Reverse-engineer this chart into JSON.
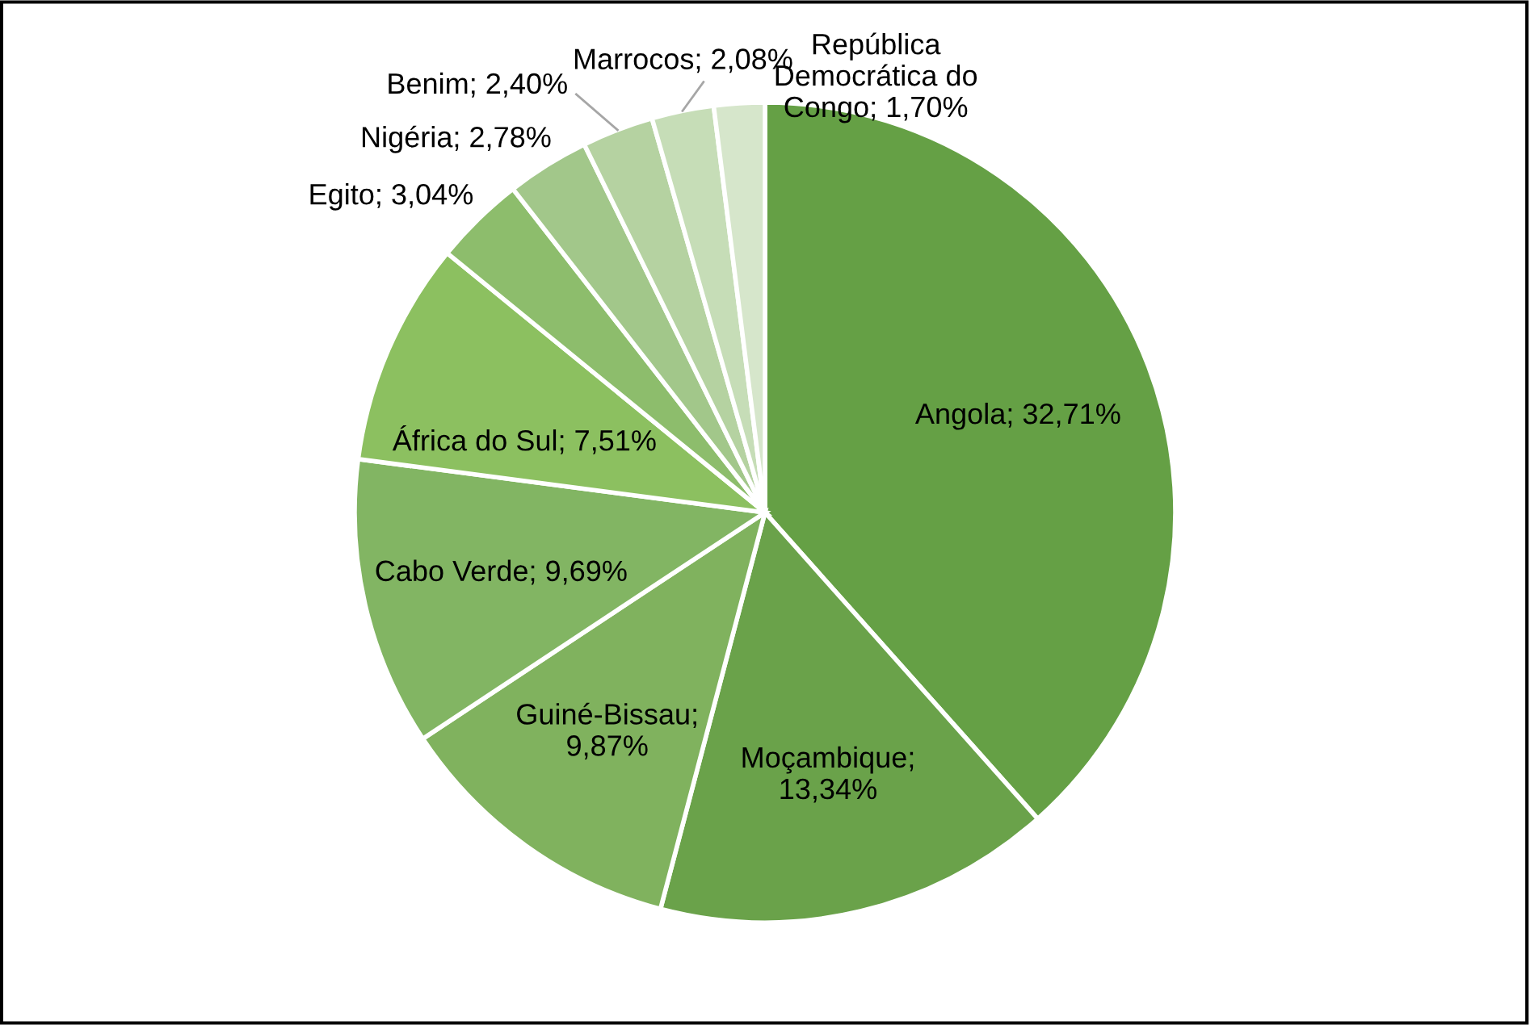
{
  "chart_data": {
    "type": "pie",
    "categories": [
      "Angola; 32,71%",
      "Moçambique;\n13,34%",
      "Guiné-Bissau;\n9,87%",
      "Cabo Verde; 9,69%",
      "África do Sul; 7,51%",
      "Egito; 3,04%",
      "Nigéria; 2,78%",
      "Benim; 2,40%",
      "Marrocos; 2,08%",
      "República\nDemocrática do\nCongo; 1,70%"
    ],
    "values": [
      32.71,
      13.34,
      9.87,
      9.69,
      7.51,
      3.04,
      2.78,
      2.4,
      2.08,
      1.7
    ],
    "colors": [
      "#65a045",
      "#6aa24a",
      "#80b25e",
      "#82b563",
      "#8cc060",
      "#8dbd6c",
      "#a2c78a",
      "#b5d2a1",
      "#c6ddb7",
      "#d6e6cb"
    ]
  }
}
